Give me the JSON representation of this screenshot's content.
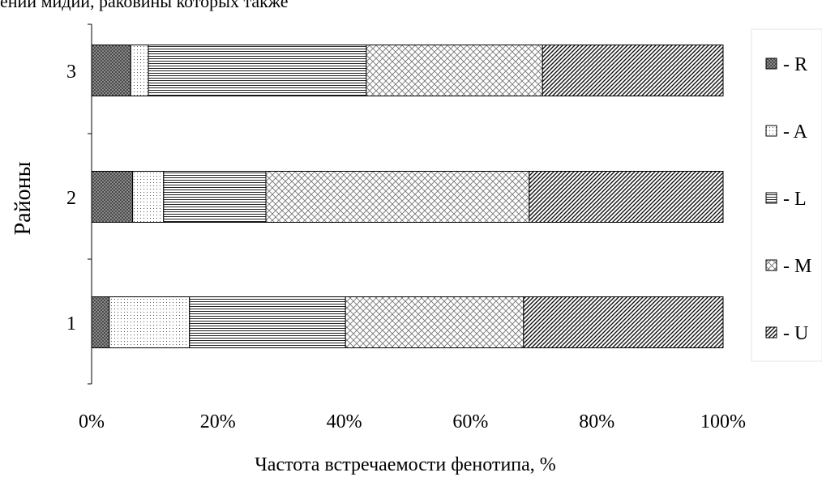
{
  "header": {
    "cropped_text": "ений мидий, раковины которых также"
  },
  "chart_data": {
    "type": "bar",
    "orientation": "horizontal",
    "stacked": "percent",
    "title": "",
    "xlabel": "Частота встречаемости фенотипа, %",
    "ylabel": "Районы",
    "categories": [
      "1",
      "2",
      "3"
    ],
    "x_ticks": [
      "0%",
      "20%",
      "40%",
      "60%",
      "80%",
      "100%"
    ],
    "xlim": [
      0,
      100
    ],
    "grid": false,
    "legend_position": "right",
    "series": [
      {
        "name": "- R",
        "pattern": "crosshatch-dark",
        "values": [
          2.8,
          6.5,
          6.2
        ]
      },
      {
        "name": "- A",
        "pattern": "dots-light",
        "values": [
          12.7,
          4.9,
          2.8
        ]
      },
      {
        "name": "- L",
        "pattern": "horizontal-lines",
        "values": [
          24.7,
          16.2,
          34.5
        ]
      },
      {
        "name": "- M",
        "pattern": "wavy-crosshatch",
        "values": [
          28.2,
          41.7,
          27.9
        ]
      },
      {
        "name": "- U",
        "pattern": "diagonal-lines",
        "values": [
          31.6,
          30.7,
          28.6
        ]
      }
    ]
  }
}
